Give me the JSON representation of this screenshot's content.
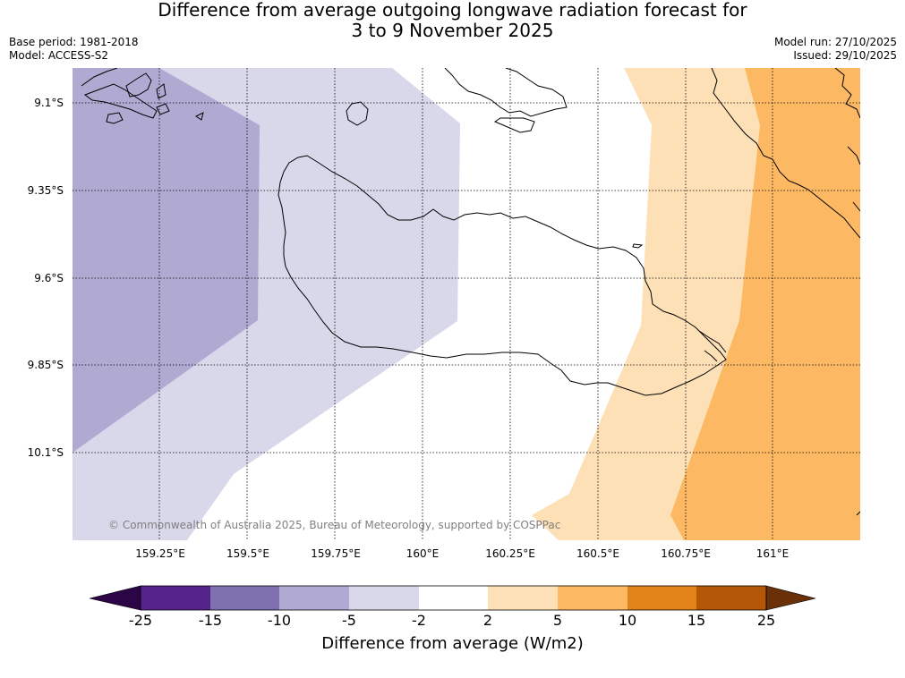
{
  "title": {
    "line1": "Difference from average outgoing longwave radiation forecast for",
    "line2": "3 to 9 November 2025"
  },
  "meta": {
    "base_period": "Base period: 1981-2018",
    "model": "Model: ACCESS-S2",
    "model_run": "Model run: 27/10/2025",
    "issued": "Issued: 29/10/2025"
  },
  "map": {
    "lat_labels": [
      "9.1°S",
      "9.35°S",
      "9.6°S",
      "9.85°S",
      "10.1°S"
    ],
    "lon_labels": [
      "159.25°E",
      "159.5°E",
      "159.75°E",
      "160°E",
      "160.25°E",
      "160.5°E",
      "160.75°E",
      "161°E"
    ],
    "copyright": "© Commonwealth of Australia 2025, Bureau of Meteorology, supported by COSPPac",
    "bands": [
      {
        "class": "-10 to -5",
        "color": "#b0aad3"
      },
      {
        "class": "-5 to -2",
        "color": "#d8d8ea"
      },
      {
        "class": "-2 to 2",
        "color": "#ffffff"
      },
      {
        "class": "2 to 5",
        "color": "#fde0b6"
      },
      {
        "class": "5 to 10",
        "color": "#fcb862"
      }
    ],
    "coast_color": "#000000"
  },
  "colorbar": {
    "ticks": [
      "-25",
      "-15",
      "-10",
      "-5",
      "-2",
      "2",
      "5",
      "10",
      "15",
      "25"
    ],
    "colors": [
      "#2c0547",
      "#56238b",
      "#7f71ad",
      "#b0aad3",
      "#d8d8ea",
      "#ffffff",
      "#fde0b6",
      "#fcb862",
      "#e18318",
      "#b35707",
      "#6a3108"
    ],
    "label": "Difference from average (W/m2)"
  }
}
